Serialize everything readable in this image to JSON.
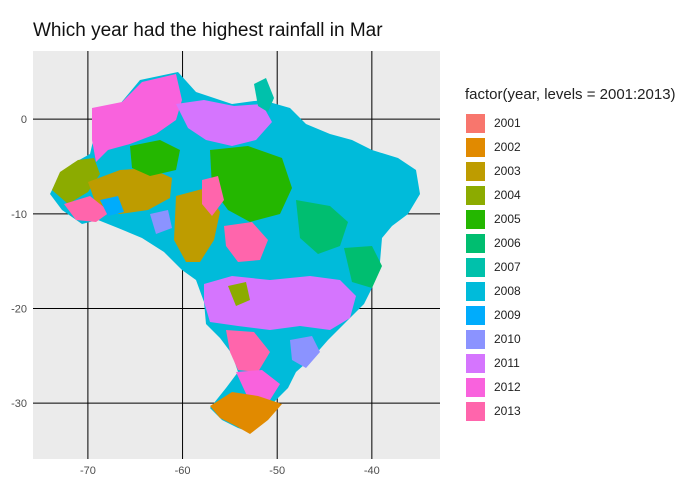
{
  "title": "Which year had the highest rainfall in Mar",
  "axes": {
    "x_ticks": [
      {
        "label": "-70",
        "value": -70
      },
      {
        "label": "-60",
        "value": -60
      },
      {
        "label": "-50",
        "value": -50
      },
      {
        "label": "-40",
        "value": -40
      }
    ],
    "y_ticks": [
      {
        "label": "0",
        "value": 0
      },
      {
        "label": "-10",
        "value": -10
      },
      {
        "label": "-20",
        "value": -20
      },
      {
        "label": "-30",
        "value": -30
      }
    ],
    "x_range": [
      -75.8,
      -32.8
    ],
    "y_range": [
      -35.9,
      7.2
    ]
  },
  "legend": {
    "title": "factor(year, levels = 2001:2013)",
    "items": [
      {
        "label": "2001",
        "color": "#F8766D"
      },
      {
        "label": "2002",
        "color": "#E18A00"
      },
      {
        "label": "2003",
        "color": "#BE9C00"
      },
      {
        "label": "2004",
        "color": "#8CAB00"
      },
      {
        "label": "2005",
        "color": "#24B700"
      },
      {
        "label": "2006",
        "color": "#00BE70"
      },
      {
        "label": "2007",
        "color": "#00C1AB"
      },
      {
        "label": "2008",
        "color": "#00BBDA"
      },
      {
        "label": "2009",
        "color": "#00ACFC"
      },
      {
        "label": "2010",
        "color": "#8B93FF"
      },
      {
        "label": "2011",
        "color": "#D575FE"
      },
      {
        "label": "2012",
        "color": "#F962DD"
      },
      {
        "label": "2013",
        "color": "#FF65AC"
      }
    ]
  },
  "colors": {
    "panel_background": "#EBEBEB",
    "grid_major": "#000000"
  }
}
